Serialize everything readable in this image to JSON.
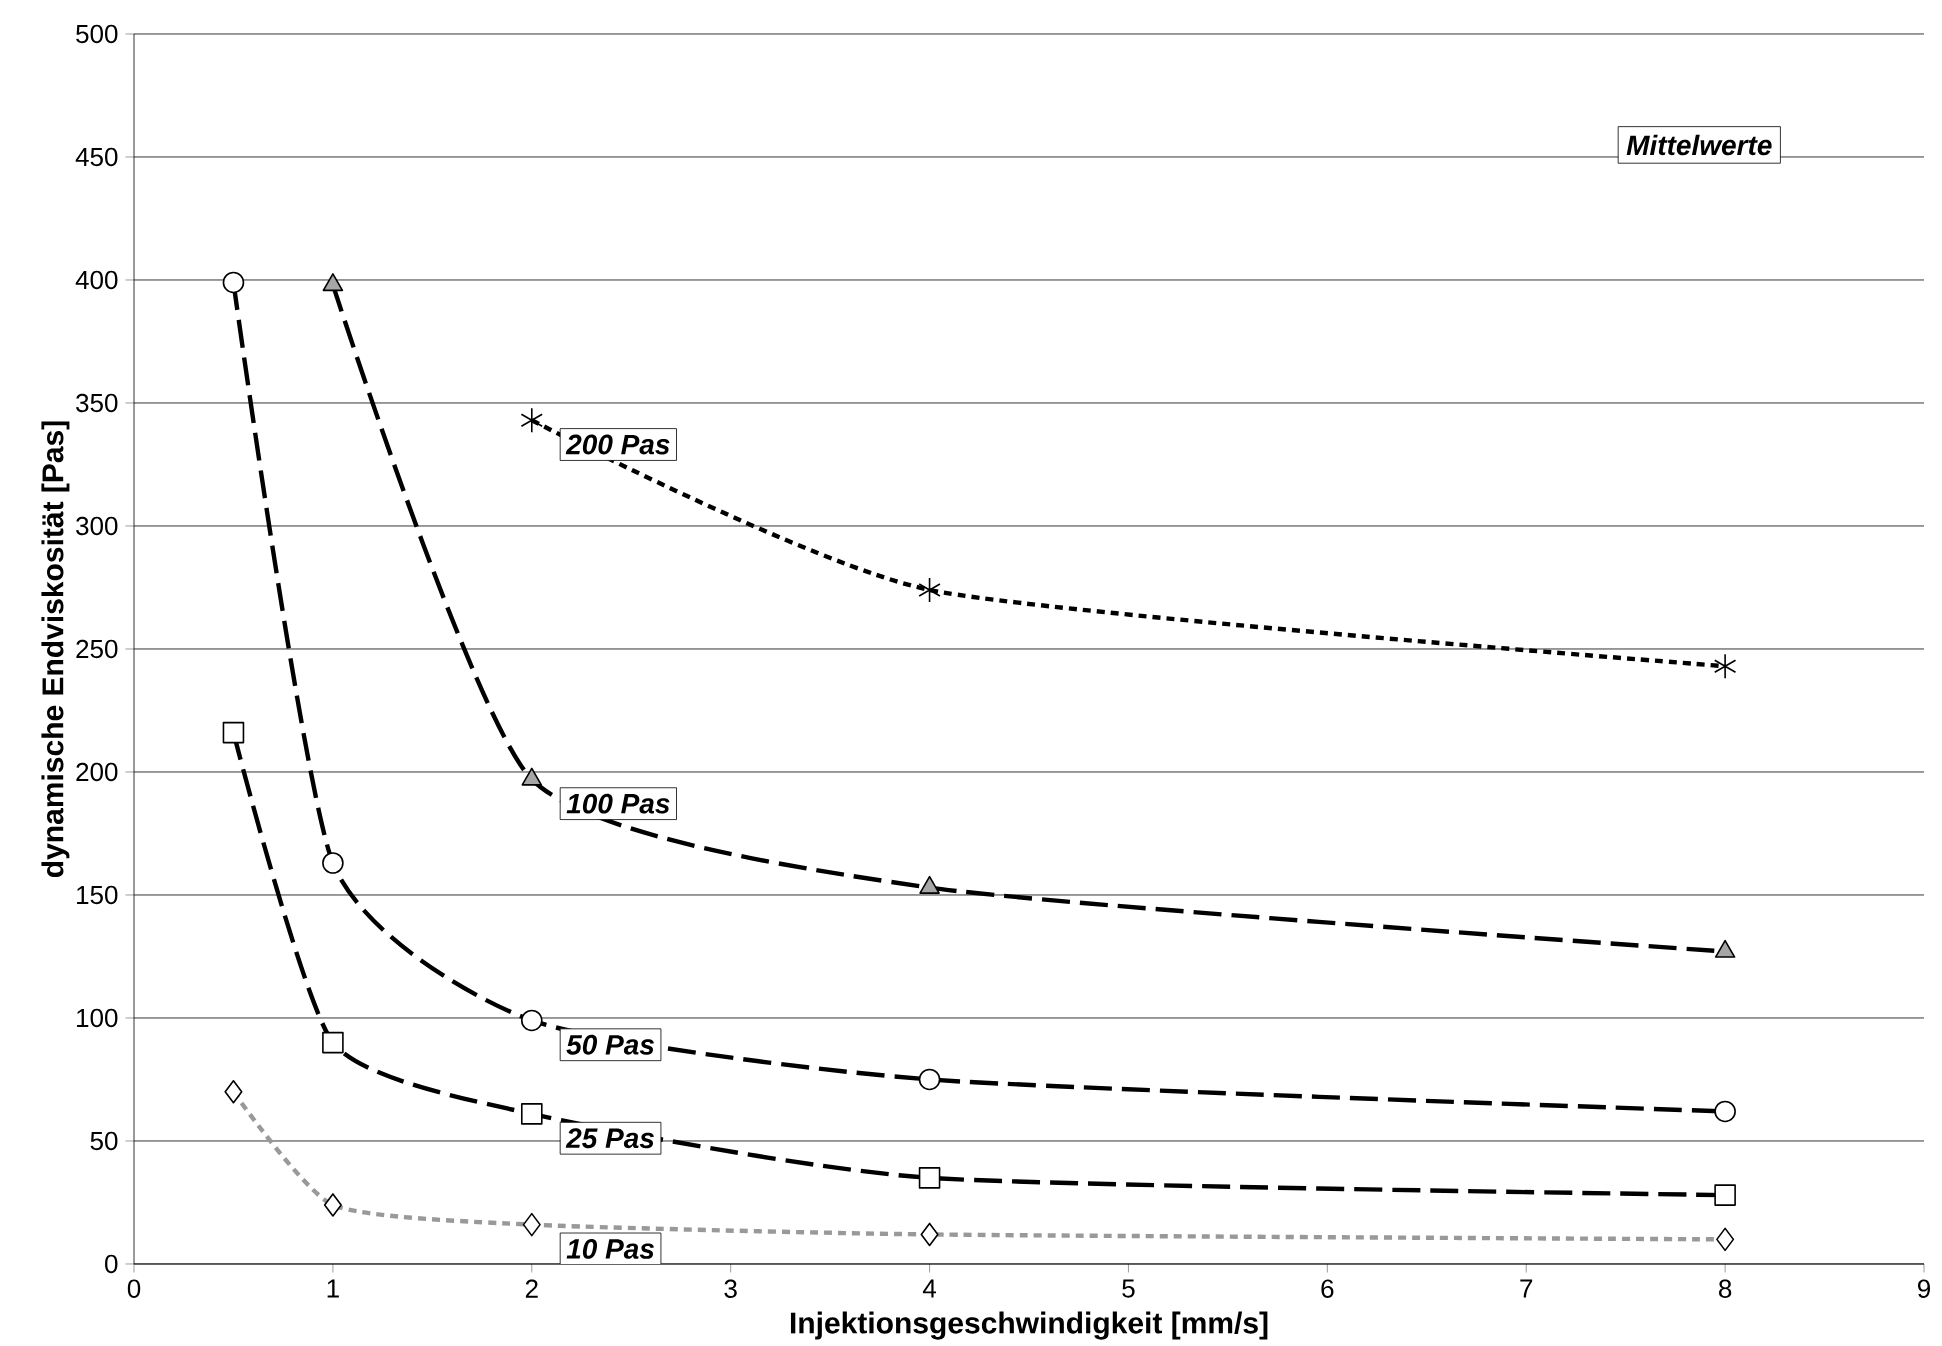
{
  "chart_data": {
    "type": "line",
    "xlabel": "Injektionsgeschwindigkeit [mm/s]",
    "ylabel": "dynamische Endviskosität [Pas]",
    "annotations": [
      "Mittelwerte"
    ],
    "xlim": [
      0,
      9
    ],
    "xticks": [
      0,
      1,
      2,
      3,
      4,
      5,
      6,
      7,
      8,
      9
    ],
    "ylim": [
      0,
      500
    ],
    "yticks": [
      0,
      50,
      100,
      150,
      200,
      250,
      300,
      350,
      400,
      450,
      500
    ],
    "grid": "y",
    "series": [
      {
        "name": "10 Pas",
        "color": "#999999",
        "line_style": "dotted",
        "marker": "diamond",
        "x": [
          0.5,
          1,
          2,
          4,
          8
        ],
        "values": [
          70,
          24,
          16,
          12,
          10
        ]
      },
      {
        "name": "25 Pas",
        "color": "#000000",
        "line_style": "dashed",
        "marker": "square",
        "x": [
          0.5,
          1,
          2,
          4,
          8
        ],
        "values": [
          216,
          90,
          61,
          35,
          28
        ]
      },
      {
        "name": "50 Pas",
        "color": "#000000",
        "line_style": "dashed",
        "marker": "circle",
        "x": [
          0.5,
          1,
          2,
          4,
          8
        ],
        "values": [
          399,
          163,
          99,
          75,
          62
        ]
      },
      {
        "name": "100 Pas",
        "color": "#000000",
        "line_style": "dashed",
        "marker": "triangle",
        "x": [
          1,
          2,
          4,
          8
        ],
        "values": [
          398,
          197,
          153,
          127
        ]
      },
      {
        "name": "200 Pas",
        "color": "#000000",
        "line_style": "dotted",
        "marker": "cross",
        "x": [
          2,
          4,
          8
        ],
        "values": [
          343,
          274,
          243
        ]
      }
    ]
  }
}
